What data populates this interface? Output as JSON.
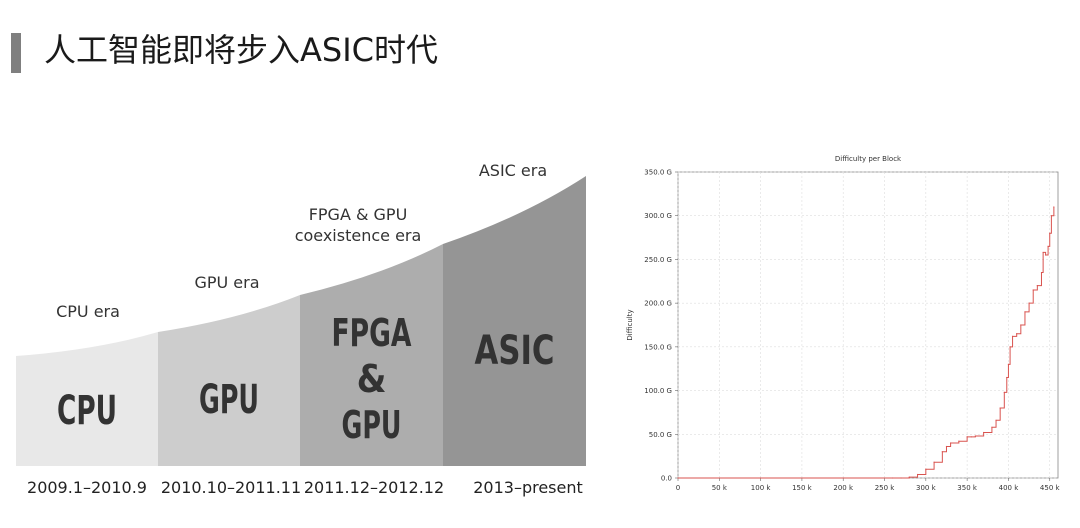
{
  "slide": {
    "title": "人工智能即将步入ASIC时代",
    "accent_color": "#7f7f7f"
  },
  "eras": [
    {
      "caption": "CPU era",
      "big_lines": [
        "CPU"
      ],
      "date": "2009.1–2010.9",
      "fill": "#e8e8e8"
    },
    {
      "caption": "GPU era",
      "big_lines": [
        "GPU"
      ],
      "date": "2010.10–2011.11",
      "fill": "#cdcdcd"
    },
    {
      "caption_lines": [
        "FPGA & GPU",
        "coexistence era"
      ],
      "big_lines": [
        "FPGA",
        "&",
        "GPU"
      ],
      "date": "2011.12–2012.12",
      "fill": "#adadad"
    },
    {
      "caption": "ASIC era",
      "big_lines": [
        "ASIC"
      ],
      "date": "2013–present",
      "fill": "#959595"
    }
  ],
  "chart_data": {
    "type": "line",
    "title": "Difficulty per Block",
    "xlabel": "",
    "ylabel": "Difficulty",
    "xlim": [
      0,
      460
    ],
    "ylim": [
      0,
      350
    ],
    "x_ticks": [
      0,
      50,
      100,
      150,
      200,
      250,
      300,
      350,
      400,
      450
    ],
    "x_tick_labels": [
      "0",
      "50 k",
      "100 k",
      "150 k",
      "200 k",
      "250 k",
      "300 k",
      "350 k",
      "400 k",
      "450 k"
    ],
    "y_ticks": [
      0,
      50,
      100,
      150,
      200,
      250,
      300,
      350
    ],
    "y_tick_labels": [
      "0.0",
      "50.0 G",
      "100.0 G",
      "150.0 G",
      "200.0 G",
      "250.0 G",
      "300.0 G",
      "350.0 G"
    ],
    "grid": true,
    "series": [
      {
        "color": "#d9534f",
        "x": [
          0,
          100,
          200,
          260,
          270,
          280,
          290,
          300,
          310,
          320,
          325,
          330,
          340,
          350,
          355,
          360,
          370,
          380,
          385,
          390,
          395,
          398,
          400,
          402,
          405,
          410,
          415,
          420,
          425,
          430,
          435,
          440,
          442,
          445,
          448,
          450,
          452,
          455
        ],
        "y": [
          0,
          0,
          0,
          0,
          0,
          1,
          4,
          10,
          18,
          30,
          36,
          40,
          42,
          47,
          47,
          48,
          52,
          58,
          66,
          80,
          98,
          115,
          130,
          150,
          162,
          165,
          175,
          190,
          200,
          215,
          220,
          235,
          258,
          255,
          265,
          280,
          300,
          310
        ]
      }
    ]
  }
}
